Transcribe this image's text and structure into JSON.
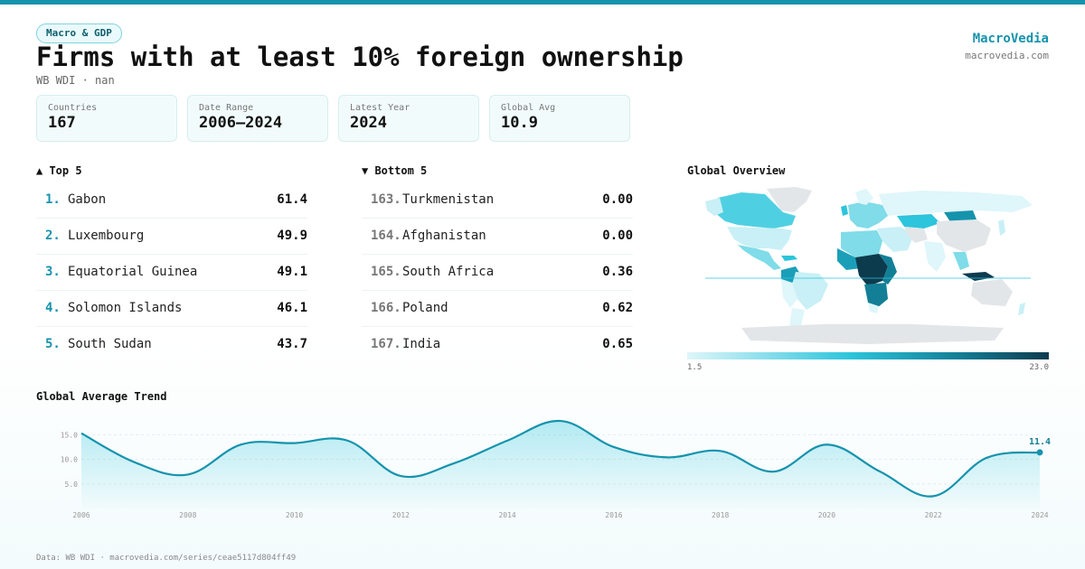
{
  "header": {
    "category": "Macro & GDP",
    "title": "Firms with at least 10% foreign ownership",
    "subtitle": "WB WDI · nan"
  },
  "brand": {
    "name": "MacroVedia",
    "url": "macrovedia.com"
  },
  "stats": [
    {
      "label": "Countries",
      "value": "167"
    },
    {
      "label": "Date Range",
      "value": "2006–2024"
    },
    {
      "label": "Latest Year",
      "value": "2024"
    },
    {
      "label": "Global Avg",
      "value": "10.9"
    }
  ],
  "top5": {
    "title": "▲ Top 5",
    "items": [
      {
        "rank": "1.",
        "name": "Gabon",
        "value": "61.4"
      },
      {
        "rank": "2.",
        "name": "Luxembourg",
        "value": "49.9"
      },
      {
        "rank": "3.",
        "name": "Equatorial Guinea",
        "value": "49.1"
      },
      {
        "rank": "4.",
        "name": "Solomon Islands",
        "value": "46.1"
      },
      {
        "rank": "5.",
        "name": "South Sudan",
        "value": "43.7"
      }
    ]
  },
  "bottom5": {
    "title": "▼ Bottom 5",
    "items": [
      {
        "rank": "163.",
        "name": "Turkmenistan",
        "value": "0.00"
      },
      {
        "rank": "164.",
        "name": "Afghanistan",
        "value": "0.00"
      },
      {
        "rank": "165.",
        "name": "South Africa",
        "value": "0.36"
      },
      {
        "rank": "166.",
        "name": "Poland",
        "value": "0.62"
      },
      {
        "rank": "167.",
        "name": "India",
        "value": "0.65"
      }
    ]
  },
  "map": {
    "title": "Global Overview",
    "legend_min": "1.5",
    "legend_max": "23.0",
    "colors": {
      "low": "#dff6fa",
      "mid": "#2cc5dc",
      "high": "#137f97",
      "max": "#0d3b4e",
      "nodata": "#e3e6e8"
    }
  },
  "trend": {
    "title": "Global Average Trend"
  },
  "chart_data": {
    "type": "area",
    "title": "Global Average Trend",
    "x": [
      2006,
      2007,
      2008,
      2009,
      2010,
      2011,
      2012,
      2013,
      2014,
      2015,
      2016,
      2017,
      2018,
      2019,
      2020,
      2021,
      2022,
      2023,
      2024
    ],
    "values": [
      15.3,
      9.4,
      6.9,
      13.0,
      13.3,
      13.8,
      6.6,
      9.2,
      13.8,
      17.8,
      12.5,
      10.4,
      11.7,
      7.5,
      13.0,
      7.5,
      2.5,
      10.3,
      11.4
    ],
    "yticks": [
      5.0,
      10.0,
      15.0
    ],
    "ylim": [
      0,
      18
    ],
    "xtick_labels": [
      "2006",
      "2008",
      "2010",
      "2012",
      "2014",
      "2016",
      "2018",
      "2020",
      "2022",
      "2024"
    ],
    "last_label": "11.4",
    "line_color": "#1593ad"
  },
  "footer": "Data: WB WDI · macrovedia.com/series/ceae5117d804ff49"
}
